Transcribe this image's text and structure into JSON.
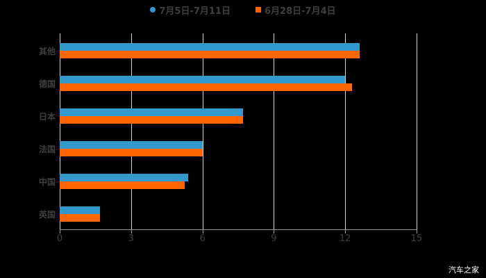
{
  "chart_data": {
    "type": "bar",
    "orientation": "horizontal",
    "title": "",
    "xlabel": "",
    "ylabel": "",
    "categories": [
      "其他",
      "德国",
      "日本",
      "法国",
      "中国",
      "英国"
    ],
    "series": [
      {
        "name": "7月5日-7月11日",
        "color": "#3399cc",
        "values": [
          12.6,
          12.0,
          7.7,
          6.0,
          5.4,
          1.7
        ]
      },
      {
        "name": "6月28日-7月4日",
        "color": "#ff6600",
        "values": [
          12.6,
          12.3,
          7.7,
          6.0,
          5.25,
          1.7
        ]
      }
    ],
    "xlim": [
      0,
      15
    ],
    "x_ticks": [
      "0",
      "3",
      "6",
      "9",
      "12",
      "15"
    ],
    "grid": true,
    "legend_position": "top"
  },
  "legend": {
    "items": [
      {
        "label": "7月5日-7月11日",
        "color": "#3399cc",
        "shape": "circle"
      },
      {
        "label": "6月28日-7月4日",
        "color": "#ff6600",
        "shape": "square"
      }
    ]
  },
  "watermark": "汽车之家"
}
